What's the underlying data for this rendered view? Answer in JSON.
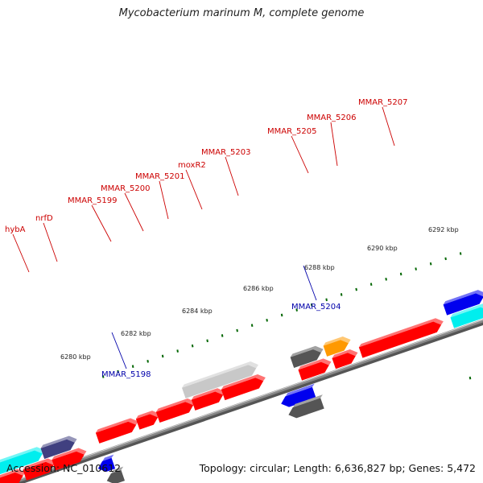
{
  "title": "Mycobacterium marinum M, complete genome",
  "footer": {
    "accession": "Accession: NC_010612",
    "summary": "Topology: circular; Length: 6,636,827 bp; Genes: 5,472"
  },
  "colors": {
    "red_gene": "#ff0000",
    "blue_gene": "#0000ee",
    "grey_gene": "#555555",
    "light_grey_gene": "#c8c8c8",
    "orange_gene": "#ff9900",
    "cyan_gene": "#00eeee",
    "purple_gene": "#404080",
    "backbone": "#888888",
    "tick": "#006600",
    "top_label": "#cc0000",
    "bottom_label": "#0000aa"
  },
  "scale_labels": [
    "6280 kbp",
    "6282 kbp",
    "6284 kbp",
    "6286 kbp",
    "6288 kbp",
    "6290 kbp",
    "6292 kbp"
  ],
  "top_labels": [
    "hybA",
    "nrfD",
    "MMAR_5199",
    "MMAR_5200",
    "MMAR_5201",
    "moxR2",
    "MMAR_5203",
    "MMAR_5205",
    "MMAR_5206",
    "MMAR_5207"
  ],
  "bottom_labels": [
    "MMAR_5198",
    "MMAR_5204"
  ]
}
